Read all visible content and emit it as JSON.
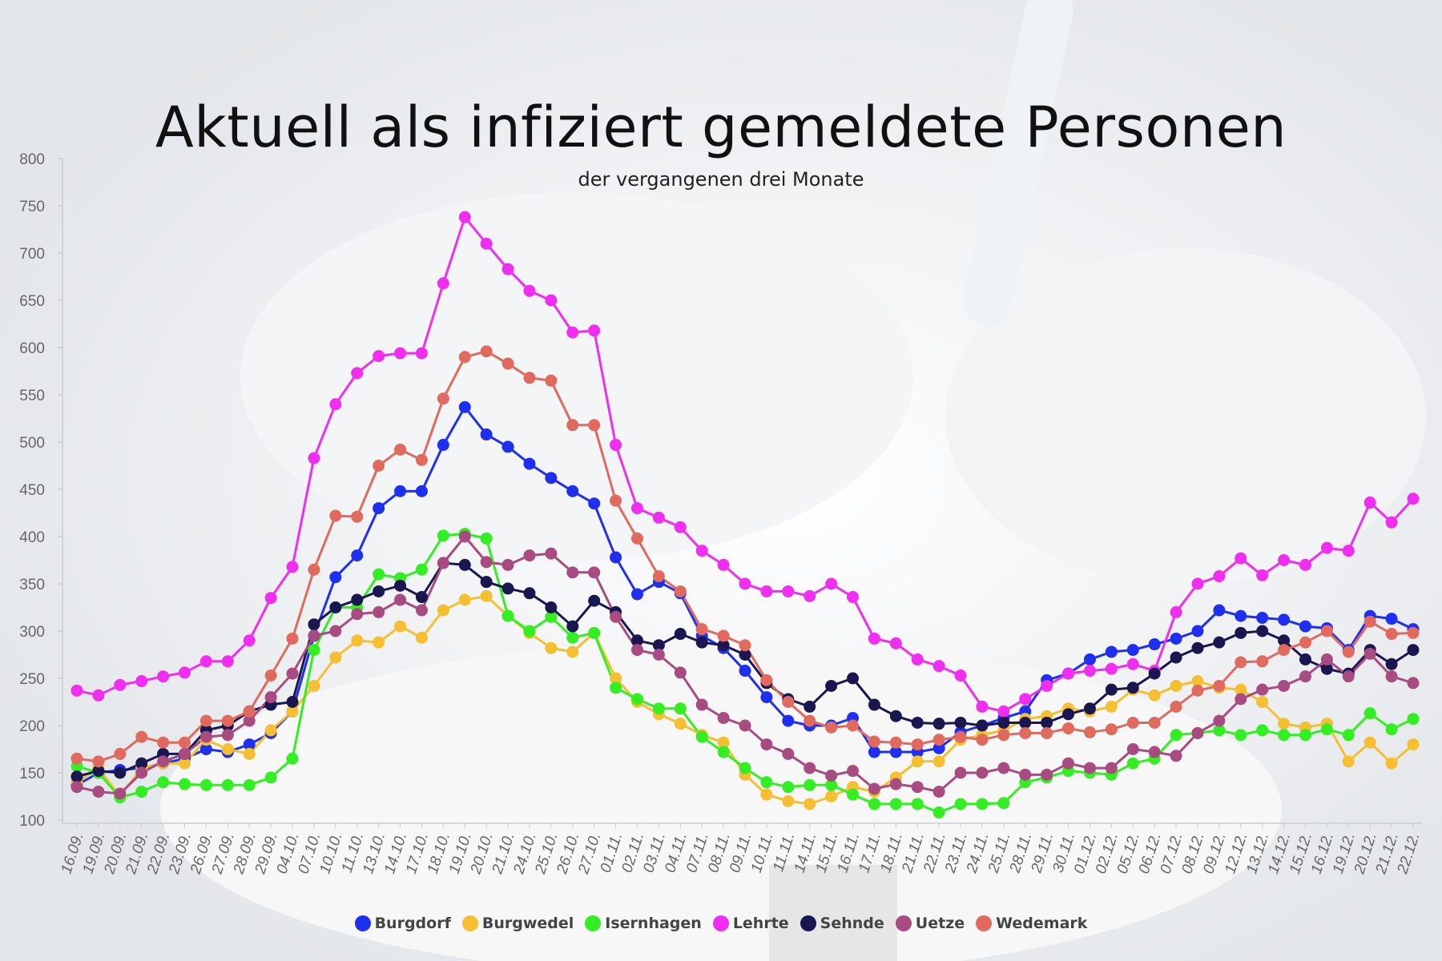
{
  "header": {
    "title": "Aktuell als infiziert gemeldete Personen",
    "subtitle": "der vergangenen drei Monate"
  },
  "chart_data": {
    "type": "line",
    "title": "Aktuell als infiziert gemeldete Personen",
    "subtitle": "der vergangenen drei Monate",
    "xlabel": "",
    "ylabel": "",
    "ylim": [
      100,
      800
    ],
    "yticks": [
      100,
      150,
      200,
      250,
      300,
      350,
      400,
      450,
      500,
      550,
      600,
      650,
      700,
      750,
      800
    ],
    "grid": false,
    "legend": "bottom-center",
    "categories": [
      "16.09.",
      "19.09.",
      "20.09.",
      "21.09.",
      "22.09.",
      "23.09.",
      "26.09.",
      "27.09.",
      "28.09.",
      "29.09.",
      "04.10.",
      "07.10.",
      "10.10.",
      "11.10.",
      "13.10.",
      "14.10.",
      "17.10.",
      "18.10.",
      "19.10.",
      "20.10.",
      "21.10.",
      "24.10.",
      "25.10.",
      "26.10.",
      "27.10.",
      "01.11.",
      "02.11.",
      "03.11.",
      "04.11.",
      "07.11.",
      "08.11.",
      "09.11.",
      "10.11.",
      "11.11.",
      "14.11.",
      "15.11.",
      "16.11.",
      "17.11.",
      "18.11.",
      "21.11.",
      "22.11.",
      "23.11.",
      "24.11.",
      "25.11.",
      "28.11.",
      "29.11.",
      "30.11.",
      "01.12.",
      "02.12.",
      "05.12.",
      "06.12.",
      "07.12.",
      "08.12.",
      "09.12.",
      "12.12.",
      "13.12.",
      "14.12.",
      "15.12.",
      "16.12.",
      "19.12.",
      "20.12.",
      "21.12.",
      "22.12."
    ],
    "series": [
      {
        "name": "Burgdorf",
        "color": "#1f2ff0",
        "values": [
          137,
          150,
          153,
          155,
          160,
          165,
          175,
          172,
          180,
          192,
          215,
          295,
          357,
          380,
          430,
          448,
          448,
          497,
          537,
          508,
          495,
          477,
          462,
          448,
          435,
          378,
          339,
          352,
          340,
          295,
          282,
          258,
          230,
          205,
          200,
          200,
          208,
          172,
          172,
          172,
          176,
          193,
          200,
          208,
          215,
          248,
          255,
          270,
          278,
          280,
          286,
          292,
          300,
          322,
          316,
          314,
          312,
          305,
          303,
          280,
          316,
          313,
          302
        ]
      },
      {
        "name": "Burgwedel",
        "color": "#f5bf32",
        "values": [
          140,
          155,
          125,
          155,
          160,
          160,
          185,
          175,
          170,
          195,
          215,
          242,
          272,
          290,
          288,
          305,
          293,
          322,
          333,
          337,
          316,
          298,
          282,
          278,
          298,
          250,
          225,
          212,
          202,
          190,
          182,
          148,
          127,
          120,
          117,
          125,
          135,
          130,
          145,
          162,
          162,
          185,
          190,
          195,
          207,
          210,
          218,
          215,
          220,
          238,
          232,
          242,
          247,
          240,
          238,
          225,
          202,
          198,
          202,
          162,
          182,
          160,
          180
        ]
      },
      {
        "name": "Isernhagen",
        "color": "#33ee22",
        "values": [
          157,
          150,
          124,
          130,
          140,
          138,
          137,
          137,
          137,
          145,
          165,
          280,
          325,
          325,
          360,
          356,
          365,
          401,
          403,
          398,
          316,
          300,
          315,
          293,
          298,
          240,
          228,
          218,
          218,
          188,
          172,
          155,
          140,
          135,
          137,
          137,
          127,
          117,
          117,
          117,
          108,
          117,
          117,
          118,
          140,
          145,
          152,
          150,
          148,
          160,
          165,
          190,
          192,
          195,
          190,
          195,
          190,
          190,
          196,
          190,
          213,
          196,
          207
        ]
      },
      {
        "name": "Lehrte",
        "color": "#f02ef0",
        "values": [
          237,
          232,
          243,
          247,
          252,
          256,
          268,
          268,
          290,
          335,
          368,
          483,
          540,
          573,
          591,
          594,
          594,
          668,
          738,
          710,
          683,
          660,
          650,
          616,
          618,
          497,
          430,
          420,
          410,
          385,
          370,
          350,
          342,
          342,
          337,
          350,
          336,
          292,
          287,
          270,
          263,
          253,
          220,
          215,
          228,
          242,
          255,
          258,
          260,
          265,
          258,
          320,
          350,
          358,
          377,
          359,
          375,
          370,
          388,
          385,
          436,
          415,
          440
        ]
      },
      {
        "name": "Sehnde",
        "color": "#1a1650",
        "values": [
          146,
          152,
          150,
          160,
          170,
          170,
          195,
          200,
          215,
          222,
          225,
          307,
          325,
          333,
          342,
          348,
          336,
          372,
          370,
          352,
          345,
          340,
          325,
          305,
          332,
          320,
          290,
          285,
          297,
          288,
          285,
          275,
          245,
          228,
          220,
          242,
          250,
          222,
          210,
          203,
          202,
          203,
          200,
          203,
          203,
          203,
          212,
          218,
          238,
          240,
          255,
          272,
          282,
          288,
          298,
          300,
          290,
          270,
          260,
          255,
          280,
          265,
          280
        ]
      },
      {
        "name": "Uetze",
        "color": "#a84b80",
        "values": [
          135,
          130,
          128,
          150,
          162,
          170,
          188,
          190,
          205,
          230,
          255,
          295,
          300,
          318,
          320,
          333,
          322,
          372,
          400,
          373,
          370,
          380,
          382,
          362,
          362,
          315,
          280,
          275,
          256,
          222,
          208,
          200,
          180,
          170,
          155,
          147,
          152,
          133,
          138,
          135,
          130,
          150,
          150,
          155,
          148,
          148,
          160,
          155,
          155,
          175,
          172,
          168,
          192,
          205,
          228,
          238,
          242,
          252,
          270,
          252,
          276,
          252,
          245
        ]
      },
      {
        "name": "Wedemark",
        "color": "#e06a5e",
        "values": [
          165,
          162,
          170,
          188,
          182,
          182,
          205,
          205,
          215,
          253,
          292,
          365,
          422,
          421,
          475,
          492,
          481,
          546,
          590,
          596,
          583,
          568,
          565,
          518,
          518,
          438,
          398,
          358,
          342,
          302,
          295,
          285,
          248,
          225,
          205,
          198,
          200,
          183,
          182,
          180,
          185,
          188,
          185,
          190,
          192,
          192,
          197,
          193,
          196,
          203,
          203,
          220,
          237,
          242,
          267,
          268,
          280,
          288,
          300,
          278,
          310,
          297,
          298
        ]
      }
    ]
  }
}
